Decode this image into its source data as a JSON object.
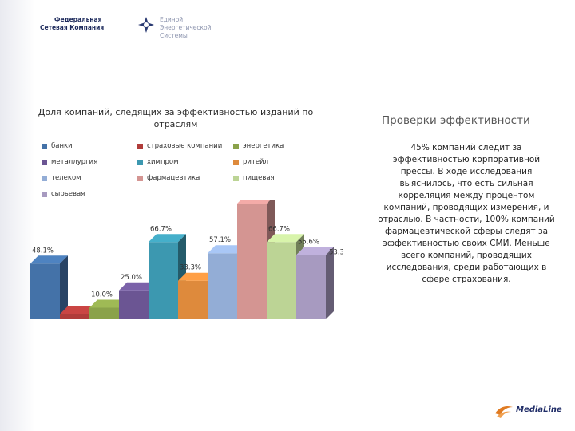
{
  "header": {
    "logo_left_line1": "Федеральная",
    "logo_left_line2": "Сетевая Компания",
    "logo_right_line1": "Единой",
    "logo_right_line2": "Энергетической Системы"
  },
  "side": {
    "title": "Проверки эффективности",
    "body": "45% компаний следит за эффективностью корпоративной прессы. В ходе исследования выяснилось, что есть сильная корреляция между процентом компаний, проводящих измерения, и отраслью. В частности, 100% компаний фармацевтической сферы следят за эффективностью своих СМИ. Меньше всего компаний, проводящих исследования, среди работающих в сфере страхования."
  },
  "brand": {
    "name": "MediaLine"
  },
  "chart_data": {
    "type": "bar",
    "title": "Доля компаний, следящих за эффективностью изданий по отраслям",
    "legend_position": "top",
    "grid": false,
    "series": [
      {
        "name": "банки",
        "value": 48.1,
        "label": "48.1%",
        "color": "#4472a8"
      },
      {
        "name": "страховые компании",
        "value": 0,
        "label": "",
        "color": "#b03c3a"
      },
      {
        "name": "энергетика",
        "value": 10.0,
        "label": "10.0%",
        "color": "#8aa24a"
      },
      {
        "name": "металлургия",
        "value": 25.0,
        "label": "25.0%",
        "color": "#6b5593"
      },
      {
        "name": "химпром",
        "value": 66.7,
        "label": "66.7%",
        "color": "#3c98b0"
      },
      {
        "name": "ритейл",
        "value": 33.3,
        "label": "33.3%",
        "color": "#de8a3c"
      },
      {
        "name": "телеком",
        "value": 57.1,
        "label": "57.1%",
        "color": "#93add6"
      },
      {
        "name": "фармацевтика",
        "value": 100.0,
        "label": "100.0%",
        "color": "#d49592"
      },
      {
        "name": "пищевая",
        "value": 66.7,
        "label": "66.7%",
        "color": "#bcd495"
      },
      {
        "name": "сырьевая",
        "value": 55.6,
        "label": "55.6%",
        "color": "#a79ac0"
      }
    ],
    "extra_labels": [
      "53.3%"
    ],
    "ylim": [
      0,
      100
    ]
  }
}
